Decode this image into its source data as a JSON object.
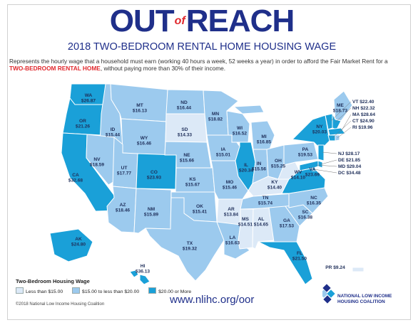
{
  "header": {
    "title_part1": "OUT",
    "title_part2": "of",
    "title_part3": "REACH",
    "subtitle": "2018 TWO-BEDROOM RENTAL HOME HOUSING WAGE",
    "desc_before": "Represents the hourly wage that a household must earn (working 40 hours a week, 52 weeks a year) in order to afford the Fair Market Rent for a ",
    "desc_highlight": "TWO-BEDROOM RENTAL HOME",
    "desc_after": ", without paying more than 30% of their income."
  },
  "colors": {
    "tier_low": "#dce9f7",
    "tier_mid": "#9ccaee",
    "tier_high": "#1aa0d8",
    "title_blue": "#1f2f8a",
    "accent_red": "#e0282d"
  },
  "map_data": {
    "states": [
      {
        "abbr": "WA",
        "wage": "$26.87",
        "tier": "high"
      },
      {
        "abbr": "OR",
        "wage": "$21.26",
        "tier": "high"
      },
      {
        "abbr": "CA",
        "wage": "$32.68",
        "tier": "high"
      },
      {
        "abbr": "ID",
        "wage": "$15.44",
        "tier": "mid"
      },
      {
        "abbr": "NV",
        "wage": "$18.59",
        "tier": "mid"
      },
      {
        "abbr": "MT",
        "wage": "$16.13",
        "tier": "mid"
      },
      {
        "abbr": "WY",
        "wage": "$16.46",
        "tier": "mid"
      },
      {
        "abbr": "UT",
        "wage": "$17.77",
        "tier": "mid"
      },
      {
        "abbr": "AZ",
        "wage": "$18.46",
        "tier": "mid"
      },
      {
        "abbr": "CO",
        "wage": "$23.93",
        "tier": "high"
      },
      {
        "abbr": "NM",
        "wage": "$15.89",
        "tier": "mid"
      },
      {
        "abbr": "ND",
        "wage": "$16.44",
        "tier": "mid"
      },
      {
        "abbr": "SD",
        "wage": "$14.33",
        "tier": "low"
      },
      {
        "abbr": "NE",
        "wage": "$15.66",
        "tier": "mid"
      },
      {
        "abbr": "KS",
        "wage": "$15.67",
        "tier": "mid"
      },
      {
        "abbr": "OK",
        "wage": "$15.41",
        "tier": "mid"
      },
      {
        "abbr": "TX",
        "wage": "$19.32",
        "tier": "mid"
      },
      {
        "abbr": "MN",
        "wage": "$18.82",
        "tier": "mid"
      },
      {
        "abbr": "IA",
        "wage": "$15.01",
        "tier": "mid"
      },
      {
        "abbr": "MO",
        "wage": "$15.46",
        "tier": "mid"
      },
      {
        "abbr": "AR",
        "wage": "$13.84",
        "tier": "low"
      },
      {
        "abbr": "LA",
        "wage": "$16.63",
        "tier": "mid"
      },
      {
        "abbr": "WI",
        "wage": "$16.52",
        "tier": "mid"
      },
      {
        "abbr": "IL",
        "wage": "$20.34",
        "tier": "high"
      },
      {
        "abbr": "MI",
        "wage": "$16.85",
        "tier": "mid"
      },
      {
        "abbr": "IN",
        "wage": "$15.56",
        "tier": "mid"
      },
      {
        "abbr": "OH",
        "wage": "$15.25",
        "tier": "mid"
      },
      {
        "abbr": "KY",
        "wage": "$14.40",
        "tier": "low"
      },
      {
        "abbr": "TN",
        "wage": "$15.74",
        "tier": "mid"
      },
      {
        "abbr": "MS",
        "wage": "$14.51",
        "tier": "low"
      },
      {
        "abbr": "AL",
        "wage": "$14.65",
        "tier": "low"
      },
      {
        "abbr": "GA",
        "wage": "$17.53",
        "tier": "mid"
      },
      {
        "abbr": "FL",
        "wage": "$21.50",
        "tier": "high"
      },
      {
        "abbr": "SC",
        "wage": "$16.38",
        "tier": "mid"
      },
      {
        "abbr": "NC",
        "wage": "$16.35",
        "tier": "mid"
      },
      {
        "abbr": "VA",
        "wage": "$23.69",
        "tier": "high"
      },
      {
        "abbr": "WV",
        "wage": "$14.10",
        "tier": "low"
      },
      {
        "abbr": "PA",
        "wage": "$19.53",
        "tier": "mid"
      },
      {
        "abbr": "NY",
        "wage": "$20.03",
        "tier": "high"
      },
      {
        "abbr": "ME",
        "wage": "$18.73",
        "tier": "mid"
      },
      {
        "abbr": "VT",
        "wage": "$22.40",
        "tier": "high"
      },
      {
        "abbr": "NH",
        "wage": "$22.32",
        "tier": "high"
      },
      {
        "abbr": "MA",
        "wage": "$28.64",
        "tier": "high"
      },
      {
        "abbr": "CT",
        "wage": "$24.90",
        "tier": "high"
      },
      {
        "abbr": "RI",
        "wage": "$19.96",
        "tier": "mid"
      },
      {
        "abbr": "NJ",
        "wage": "$28.17",
        "tier": "high"
      },
      {
        "abbr": "DE",
        "wage": "$21.85",
        "tier": "high"
      },
      {
        "abbr": "MD",
        "wage": "$29.04",
        "tier": "high"
      },
      {
        "abbr": "DC",
        "wage": "$34.48",
        "tier": "high"
      },
      {
        "abbr": "AK",
        "wage": "$24.80",
        "tier": "high"
      },
      {
        "abbr": "HI",
        "wage": "$36.13",
        "tier": "high"
      },
      {
        "abbr": "PR",
        "wage": "$9.24",
        "tier": "low"
      }
    ]
  },
  "legend": {
    "title": "Two-Bedroom Housing Wage",
    "items": [
      {
        "label": "Less than $15.00",
        "tier": "low"
      },
      {
        "label": "$15.00 to less than $20.00",
        "tier": "mid"
      },
      {
        "label": "$20.00 or More",
        "tier": "high"
      }
    ]
  },
  "footer": {
    "url": "www.nlihc.org/oor",
    "copyright": "©2018 National Low Income Housing Coalition",
    "org_line1": "NATIONAL LOW INCOME",
    "org_line2": "HOUSING COALITION"
  }
}
